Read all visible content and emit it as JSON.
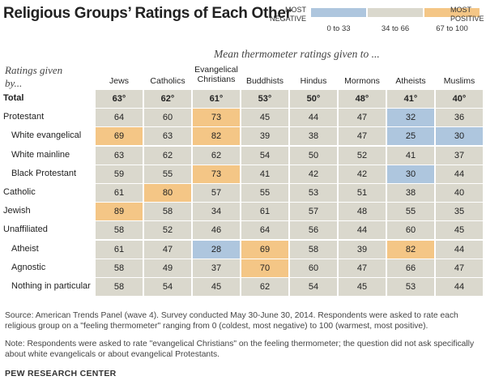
{
  "title": "Religious Groups’ Ratings of Each Other",
  "legend": {
    "low_word": "MOST NEGATIVE",
    "high_word": "MOST POSITIVE",
    "bins": [
      {
        "label": "0 to 33",
        "color": "#aec6de"
      },
      {
        "label": "34 to 66",
        "color": "#dad8cd"
      },
      {
        "label": "67 to 100",
        "color": "#f4c686"
      }
    ]
  },
  "subtitle": "Mean thermometer ratings given to ...",
  "row_header": "Ratings given by...",
  "chart_data": {
    "type": "heatmap",
    "title": "Religious Groups’ Ratings of Each Other",
    "columns": [
      "Jews",
      "Catholics",
      "Evangelical Christians",
      "Buddhists",
      "Hindus",
      "Mormons",
      "Atheists",
      "Muslims"
    ],
    "rows": [
      {
        "label": "Total",
        "indent": 0,
        "bold": true,
        "values": [
          "63°",
          "62°",
          "61°",
          "53°",
          "50°",
          "48°",
          "41°",
          "40°"
        ]
      },
      {
        "label": "Protestant",
        "indent": 0,
        "values": [
          "64",
          "60",
          "73",
          "45",
          "44",
          "47",
          "32",
          "36"
        ]
      },
      {
        "label": "White evangelical",
        "indent": 1,
        "values": [
          "69",
          "63",
          "82",
          "39",
          "38",
          "47",
          "25",
          "30"
        ]
      },
      {
        "label": "White mainline",
        "indent": 1,
        "values": [
          "63",
          "62",
          "62",
          "54",
          "50",
          "52",
          "41",
          "37"
        ]
      },
      {
        "label": "Black Protestant",
        "indent": 1,
        "values": [
          "59",
          "55",
          "73",
          "41",
          "42",
          "42",
          "30",
          "44"
        ]
      },
      {
        "label": "Catholic",
        "indent": 0,
        "values": [
          "61",
          "80",
          "57",
          "55",
          "53",
          "51",
          "38",
          "40"
        ]
      },
      {
        "label": "Jewish",
        "indent": 0,
        "values": [
          "89",
          "58",
          "34",
          "61",
          "57",
          "48",
          "55",
          "35"
        ]
      },
      {
        "label": "Unaffiliated",
        "indent": 0,
        "values": [
          "58",
          "52",
          "46",
          "64",
          "56",
          "44",
          "60",
          "45"
        ]
      },
      {
        "label": "Atheist",
        "indent": 1,
        "values": [
          "61",
          "47",
          "28",
          "69",
          "58",
          "39",
          "82",
          "44"
        ]
      },
      {
        "label": "Agnostic",
        "indent": 1,
        "values": [
          "58",
          "49",
          "37",
          "70",
          "60",
          "47",
          "66",
          "47"
        ]
      },
      {
        "label": "Nothing in particular",
        "indent": 1,
        "values": [
          "58",
          "54",
          "45",
          "62",
          "54",
          "45",
          "53",
          "44"
        ]
      }
    ],
    "color_bins": [
      {
        "min": 0,
        "max": 33,
        "color": "#aec6de"
      },
      {
        "min": 34,
        "max": 66,
        "color": "#dad8cd"
      },
      {
        "min": 67,
        "max": 100,
        "color": "#f4c686"
      }
    ]
  },
  "source": "Source: American Trends Panel (wave 4). Survey conducted May 30-June 30, 2014. Respondents were asked to rate each religious group on a \"feeling thermometer\" ranging from 0 (coldest, most negative) to 100 (warmest, most positive).",
  "note": "Note: Respondents were asked to rate \"evangelical Christians\" on the feeling thermometer; the question did not ask specifically about white evangelicals or about evangelical Protestants.",
  "credit": "PEW RESEARCH CENTER"
}
